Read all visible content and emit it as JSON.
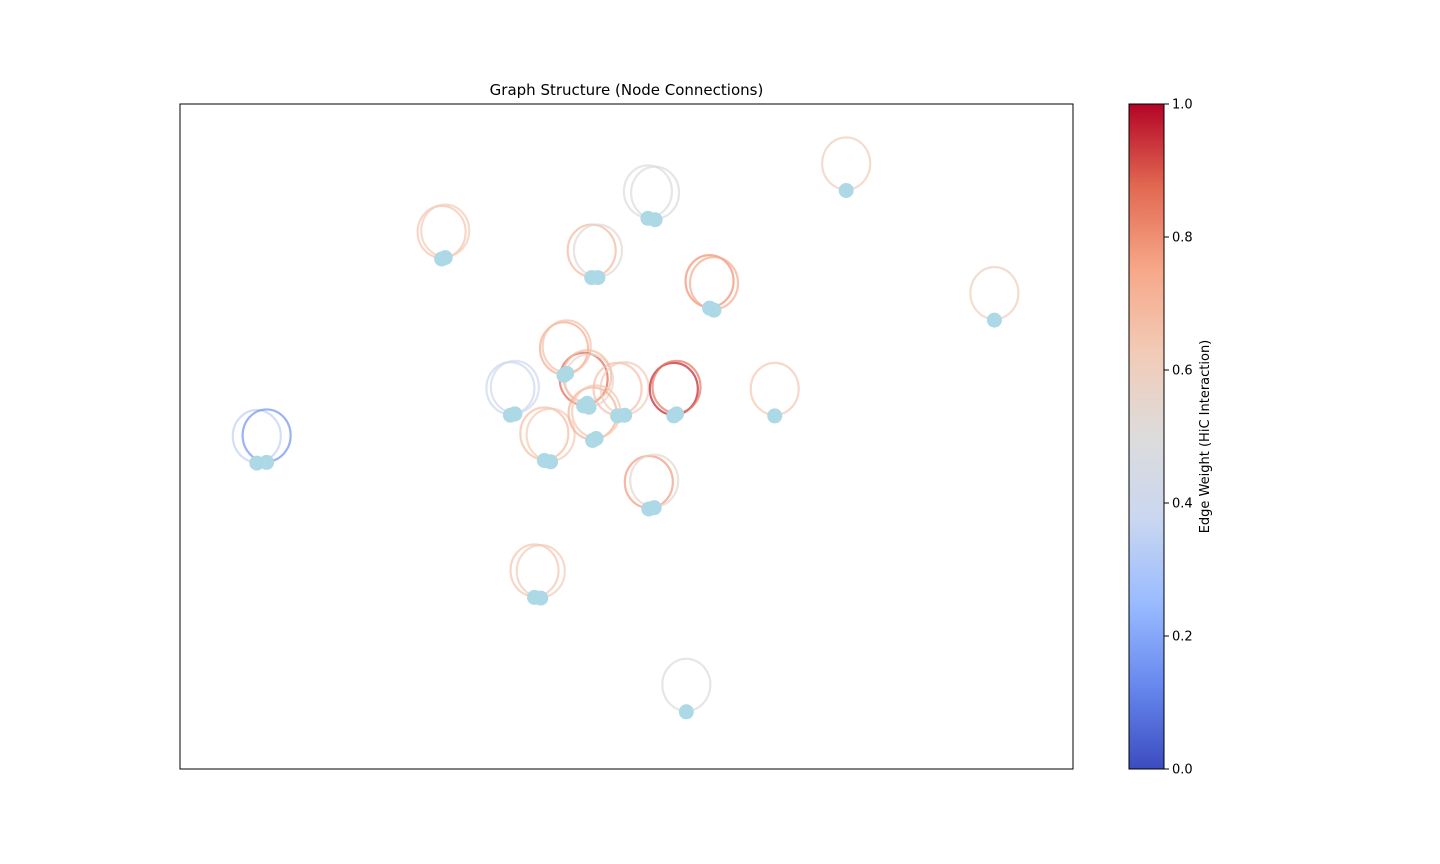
{
  "chart_data": {
    "type": "scatter",
    "title": "Graph Structure (Node Connections)",
    "xlabel": "",
    "ylabel": "",
    "axes_ticks": "hidden",
    "node_color": "#add8e6",
    "colormap": "coolwarm",
    "colorbar": {
      "label": "Edge Weight (HiC Interaction)",
      "range": [
        0.0,
        1.0
      ],
      "ticks": [
        "0.0",
        "0.2",
        "0.4",
        "0.6",
        "0.8",
        "1.0"
      ],
      "stops": [
        "#3b4cc0",
        "#6788ee",
        "#9abbff",
        "#c9d7f0",
        "#dddcdc",
        "#f2cbb7",
        "#f7a889",
        "#e26952",
        "#b40426"
      ]
    },
    "plot_range": {
      "x": [
        0,
        100
      ],
      "y": [
        0,
        100
      ]
    },
    "nodes": [
      {
        "x": 8.6,
        "y": 46.0
      },
      {
        "x": 9.7,
        "y": 46.1
      },
      {
        "x": 29.3,
        "y": 76.7
      },
      {
        "x": 29.7,
        "y": 76.9
      },
      {
        "x": 39.7,
        "y": 25.8
      },
      {
        "x": 40.4,
        "y": 25.7
      },
      {
        "x": 40.8,
        "y": 46.4
      },
      {
        "x": 41.5,
        "y": 46.2
      },
      {
        "x": 37.0,
        "y": 53.2
      },
      {
        "x": 37.5,
        "y": 53.4
      },
      {
        "x": 43.0,
        "y": 59.2
      },
      {
        "x": 43.3,
        "y": 59.5
      },
      {
        "x": 45.2,
        "y": 54.6
      },
      {
        "x": 45.8,
        "y": 54.4
      },
      {
        "x": 45.6,
        "y": 55.0
      },
      {
        "x": 46.2,
        "y": 49.4
      },
      {
        "x": 46.6,
        "y": 49.7
      },
      {
        "x": 49.0,
        "y": 53.1
      },
      {
        "x": 49.8,
        "y": 53.2
      },
      {
        "x": 46.1,
        "y": 73.9
      },
      {
        "x": 46.8,
        "y": 73.9
      },
      {
        "x": 52.4,
        "y": 82.8
      },
      {
        "x": 53.2,
        "y": 82.6
      },
      {
        "x": 52.5,
        "y": 39.1
      },
      {
        "x": 53.1,
        "y": 39.3
      },
      {
        "x": 55.3,
        "y": 53.1
      },
      {
        "x": 55.6,
        "y": 53.4
      },
      {
        "x": 59.3,
        "y": 69.3
      },
      {
        "x": 59.8,
        "y": 69.0
      },
      {
        "x": 66.6,
        "y": 53.1
      },
      {
        "x": 74.6,
        "y": 87.0
      },
      {
        "x": 91.2,
        "y": 67.5
      },
      {
        "x": 56.7,
        "y": 8.6
      }
    ],
    "edges": [
      {
        "source": 0,
        "target": 0,
        "weight": 0.35
      },
      {
        "source": 1,
        "target": 1,
        "weight": 0.15
      },
      {
        "source": 2,
        "target": 2,
        "weight": 0.65
      },
      {
        "source": 3,
        "target": 3,
        "weight": 0.62
      },
      {
        "source": 4,
        "target": 4,
        "weight": 0.65
      },
      {
        "source": 5,
        "target": 5,
        "weight": 0.62
      },
      {
        "source": 6,
        "target": 6,
        "weight": 0.68
      },
      {
        "source": 7,
        "target": 7,
        "weight": 0.63
      },
      {
        "source": 8,
        "target": 8,
        "weight": 0.38
      },
      {
        "source": 9,
        "target": 9,
        "weight": 0.42
      },
      {
        "source": 10,
        "target": 10,
        "weight": 0.74
      },
      {
        "source": 11,
        "target": 11,
        "weight": 0.66
      },
      {
        "source": 12,
        "target": 12,
        "weight": 0.88
      },
      {
        "source": 13,
        "target": 13,
        "weight": 0.55
      },
      {
        "source": 14,
        "target": 14,
        "weight": 0.68
      },
      {
        "source": 15,
        "target": 15,
        "weight": 0.72
      },
      {
        "source": 16,
        "target": 16,
        "weight": 0.64
      },
      {
        "source": 17,
        "target": 17,
        "weight": 0.67
      },
      {
        "source": 18,
        "target": 18,
        "weight": 0.62
      },
      {
        "source": 19,
        "target": 19,
        "weight": 0.7
      },
      {
        "source": 20,
        "target": 20,
        "weight": 0.52
      },
      {
        "source": 21,
        "target": 21,
        "weight": 0.5
      },
      {
        "source": 22,
        "target": 22,
        "weight": 0.47
      },
      {
        "source": 23,
        "target": 23,
        "weight": 0.78
      },
      {
        "source": 24,
        "target": 24,
        "weight": 0.55
      },
      {
        "source": 25,
        "target": 25,
        "weight": 0.97
      },
      {
        "source": 26,
        "target": 26,
        "weight": 0.85
      },
      {
        "source": 27,
        "target": 27,
        "weight": 0.8
      },
      {
        "source": 28,
        "target": 28,
        "weight": 0.74
      },
      {
        "source": 29,
        "target": 29,
        "weight": 0.64
      },
      {
        "source": 30,
        "target": 30,
        "weight": 0.62
      },
      {
        "source": 31,
        "target": 31,
        "weight": 0.6
      },
      {
        "source": 32,
        "target": 32,
        "weight": 0.5
      }
    ]
  }
}
